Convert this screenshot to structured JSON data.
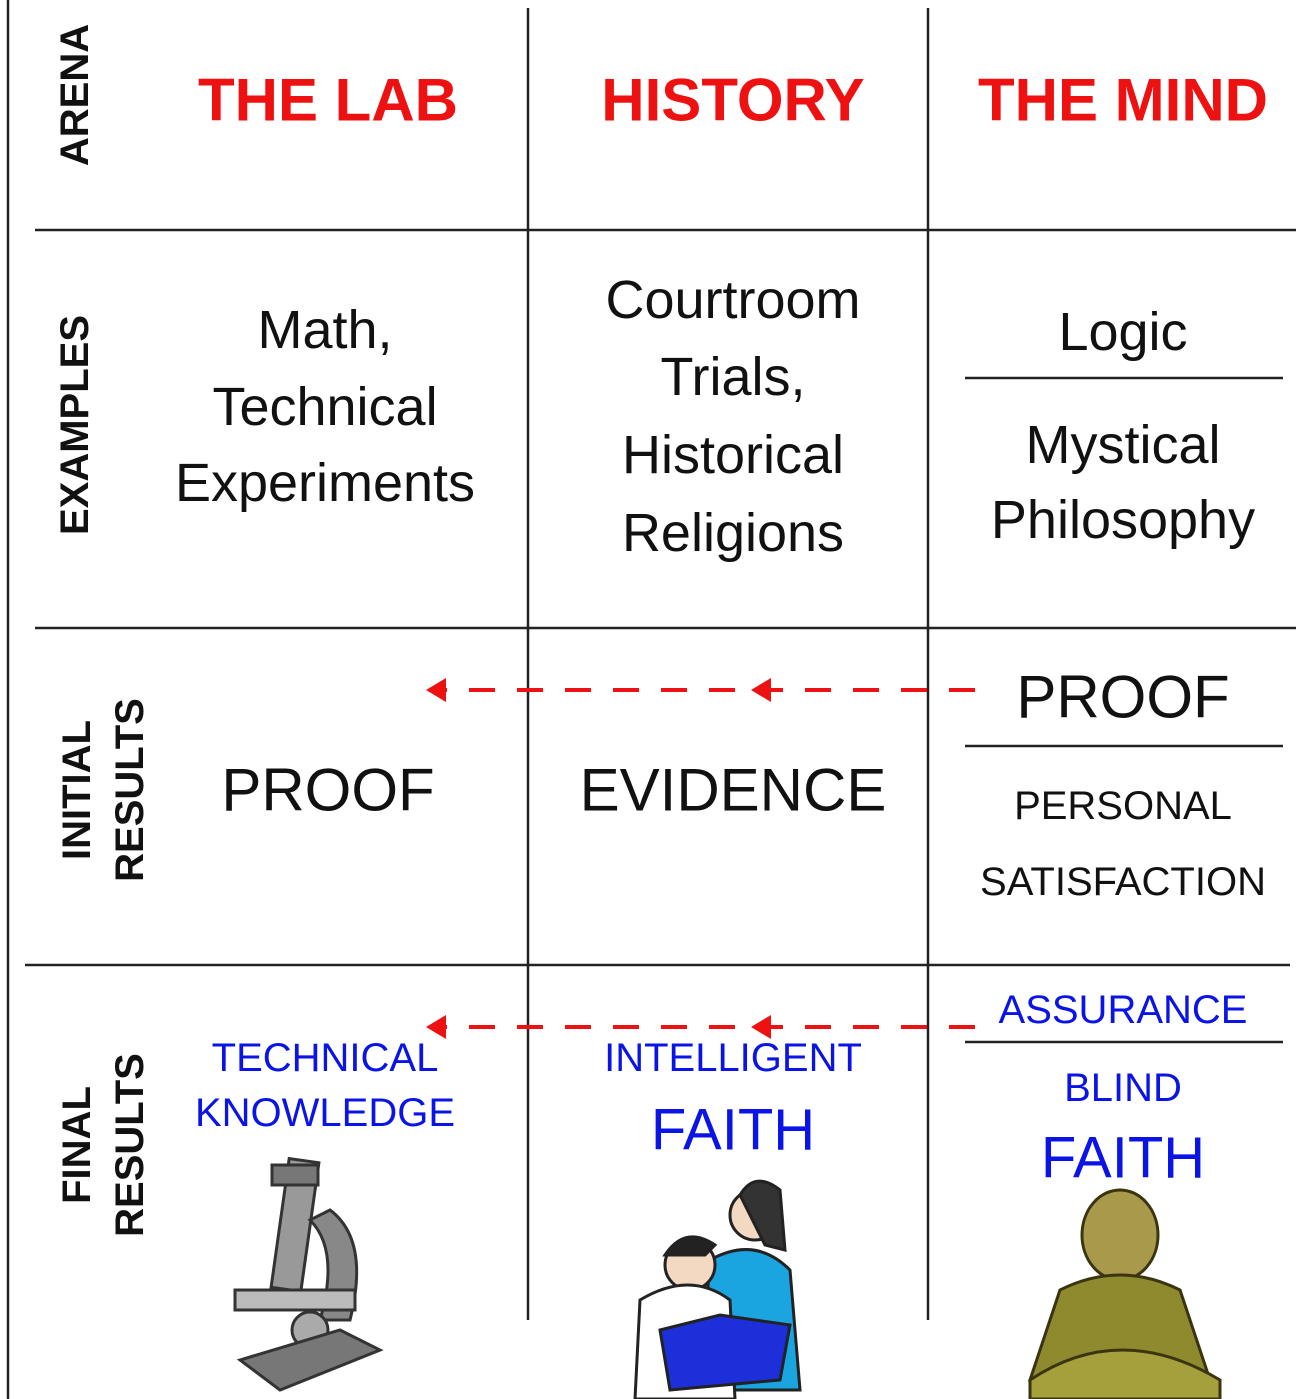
{
  "row_labels": [
    [
      "ARENA"
    ],
    [
      "EXAMPLES"
    ],
    [
      "INITIAL",
      "RESULTS"
    ],
    [
      "FINAL",
      "RESULTS"
    ]
  ],
  "arena": [
    "THE LAB",
    "HISTORY",
    "THE MIND"
  ],
  "examples": {
    "lab": [
      "Math,",
      "Technical",
      "Experiments"
    ],
    "history": [
      "Courtroom",
      "Trials,",
      "Historical",
      "Religions"
    ],
    "mind_top": [
      "Logic"
    ],
    "mind_bottom": [
      "Mystical",
      "Philosophy"
    ]
  },
  "initial_results": {
    "lab": "PROOF",
    "history": "EVIDENCE",
    "mind_top": "PROOF",
    "mind_bottom": [
      "PERSONAL",
      "SATISFACTION"
    ]
  },
  "final_results": {
    "lab": [
      "TECHNICAL",
      "KNOWLEDGE"
    ],
    "history": [
      "INTELLIGENT",
      "FAITH"
    ],
    "mind_top": "ASSURANCE",
    "mind_bottom": [
      "BLIND",
      "FAITH"
    ]
  }
}
